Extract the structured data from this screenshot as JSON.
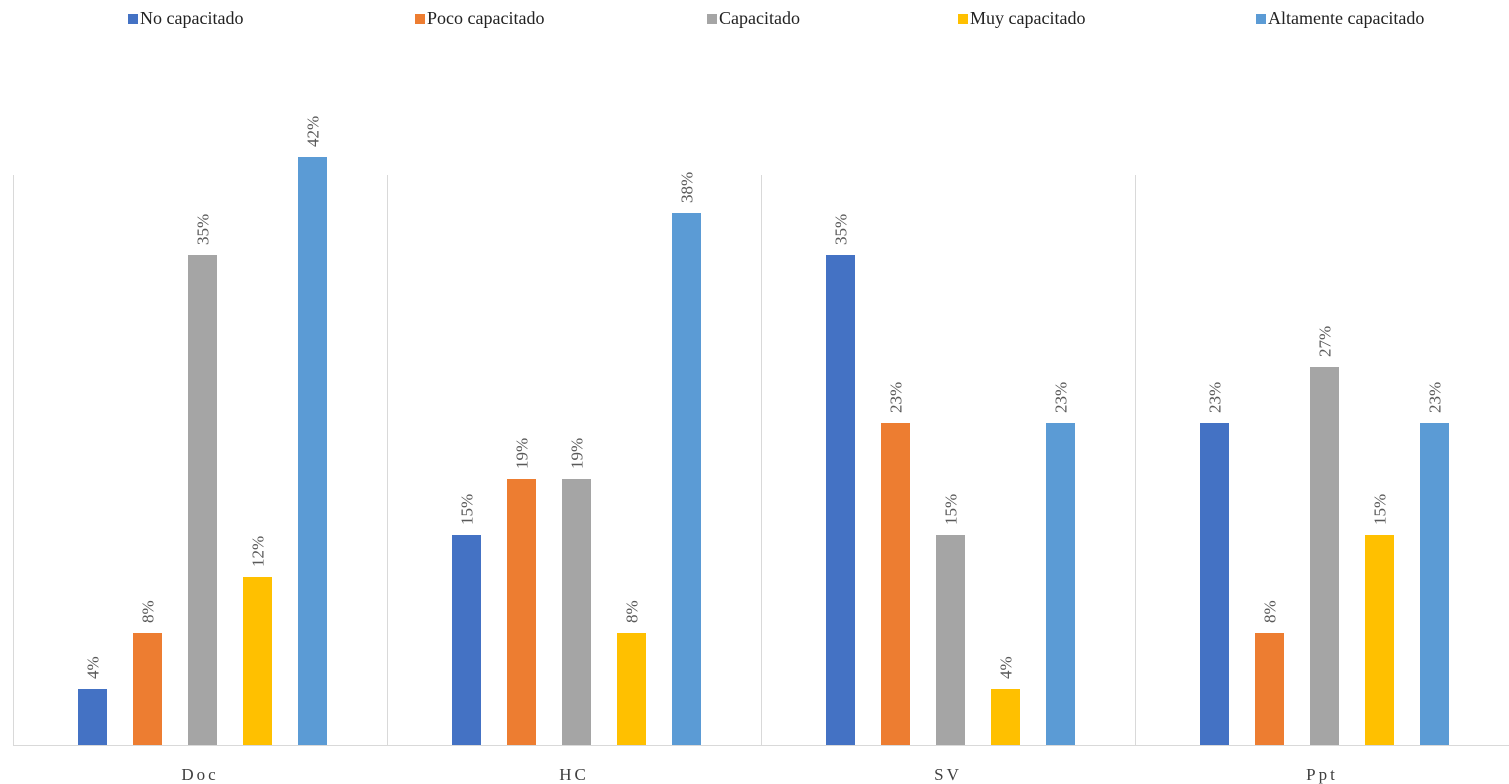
{
  "chart_data": {
    "type": "bar",
    "title": "",
    "xlabel": "",
    "ylabel": "",
    "categories": [
      "Doc",
      "HC",
      "SV",
      "Ppt"
    ],
    "series": [
      {
        "name": "No capacitado",
        "color": "#4472C4",
        "values": [
          4,
          15,
          35,
          23
        ]
      },
      {
        "name": "Poco capacitado",
        "color": "#ED7D31",
        "values": [
          8,
          19,
          23,
          8
        ]
      },
      {
        "name": "Capacitado",
        "color": "#A5A5A5",
        "values": [
          35,
          19,
          15,
          27
        ]
      },
      {
        "name": "Muy capacitado",
        "color": "#FFC000",
        "values": [
          12,
          8,
          4,
          15
        ]
      },
      {
        "name": "Altamente capacitado",
        "color": "#5B9BD5",
        "values": [
          42,
          38,
          23,
          23
        ]
      }
    ],
    "value_suffix": "%",
    "ylim": [
      0,
      47
    ],
    "grid": false,
    "category_dividers": true,
    "legend_position": "top",
    "data_labels": "rotated-vertical"
  }
}
